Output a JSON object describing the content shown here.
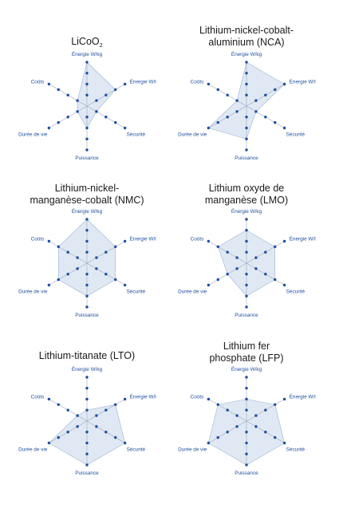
{
  "colors": {
    "area": "#c7d5ea",
    "dot": "#1d4fa0",
    "label": "#1f4e9e",
    "axis": "#9aa9c4"
  },
  "chart_data": [
    {
      "type": "radar",
      "title_lines": [
        "LiCoO",
        ""
      ],
      "title_subscript": "2",
      "axes": [
        "Énergie W/kg",
        "Énergie W/l",
        "Sécurité",
        "Puissance",
        "Durée de vie",
        "Coûts"
      ],
      "scale": 4,
      "values": [
        4,
        3,
        1,
        2,
        1,
        1
      ],
      "grid": false,
      "legend": "none"
    },
    {
      "type": "radar",
      "title_lines": [
        "Lithium-nickel-cobalt-",
        "aluminium (NCA)"
      ],
      "axes": [
        "Énergie W/kg",
        "Énergie W/l",
        "Sécurité",
        "Puissance",
        "Durée de vie",
        "Coûts"
      ],
      "scale": 4,
      "values": [
        4,
        4,
        1,
        3,
        4,
        1
      ],
      "grid": false,
      "legend": "none"
    },
    {
      "type": "radar",
      "title_lines": [
        "Lithium-nickel-",
        "manganèse-cobalt (NMC)"
      ],
      "axes": [
        "Énergie W/kg",
        "Énergie W/l",
        "Sécurité",
        "Puissance",
        "Durée de vie",
        "Coûts"
      ],
      "scale": 4,
      "values": [
        4,
        3,
        3,
        3,
        3,
        3
      ],
      "grid": false,
      "legend": "none"
    },
    {
      "type": "radar",
      "title_lines": [
        "Lithium oxyde de",
        "manganèse (LMO)"
      ],
      "axes": [
        "Énergie W/kg",
        "Énergie W/l",
        "Sécurité",
        "Puissance",
        "Durée de vie",
        "Coûts"
      ],
      "scale": 4,
      "values": [
        3,
        3,
        3,
        3,
        2,
        3
      ],
      "grid": false,
      "legend": "none"
    },
    {
      "type": "radar",
      "title_lines": [
        "Lithium-titanate (LTO)",
        ""
      ],
      "axes": [
        "Énergie W/kg",
        "Énergie W/l",
        "Sécurité",
        "Puissance",
        "Durée de vie",
        "Coûts"
      ],
      "scale": 4,
      "values": [
        1,
        3,
        4,
        4,
        4,
        1
      ],
      "grid": false,
      "legend": "none"
    },
    {
      "type": "radar",
      "title_lines": [
        "Lithium fer",
        "phosphate (LFP)"
      ],
      "axes": [
        "Énergie W/kg",
        "Énergie W/l",
        "Sécurité",
        "Puissance",
        "Durée de vie",
        "Coûts"
      ],
      "scale": 4,
      "values": [
        2,
        3,
        4,
        4,
        4,
        3
      ],
      "grid": false,
      "legend": "none"
    }
  ]
}
